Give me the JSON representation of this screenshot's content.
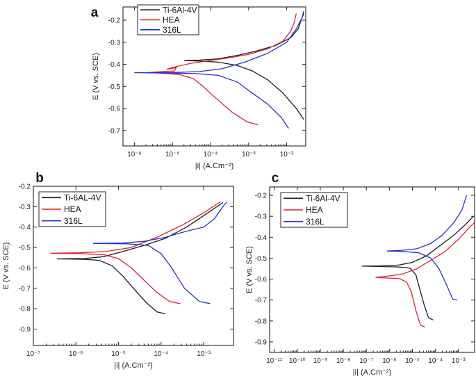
{
  "chart_data": [
    {
      "id": "a",
      "panel_label": "a",
      "type": "line",
      "xscale": "log",
      "xlabel": "|i| (A.Cm⁻²)",
      "ylabel": "E (V vs. SCE)",
      "xlim_exp": [
        -6.3,
        -1.5
      ],
      "ylim": [
        -0.77,
        -0.14
      ],
      "x_ticks": [
        {
          "exp": -6,
          "label": "10⁻⁶"
        },
        {
          "exp": -5,
          "label": "10⁻⁵"
        },
        {
          "exp": -4,
          "label": "10⁻⁴"
        },
        {
          "exp": -3,
          "label": "10⁻³"
        },
        {
          "exp": -2,
          "label": "10⁻²"
        }
      ],
      "y_ticks": [
        {
          "v": -0.2,
          "label": "-0.2"
        },
        {
          "v": -0.3,
          "label": "-0.3"
        },
        {
          "v": -0.4,
          "label": "-0.4"
        },
        {
          "v": -0.5,
          "label": "-0.5"
        },
        {
          "v": -0.6,
          "label": "-0.6"
        },
        {
          "v": -0.7,
          "label": "-0.7"
        }
      ],
      "legend": [
        "Ti-6Al-4V",
        "HEA",
        "316L"
      ],
      "series": [
        {
          "name": "Ti-6Al-4V",
          "color": "#1a1a1a",
          "points": [
            [
              -1.55,
              -0.65
            ],
            [
              -1.75,
              -0.6
            ],
            [
              -2.1,
              -0.53
            ],
            [
              -2.5,
              -0.47
            ],
            [
              -2.9,
              -0.43
            ],
            [
              -3.3,
              -0.405
            ],
            [
              -3.8,
              -0.39
            ],
            [
              -4.3,
              -0.385
            ],
            [
              -4.7,
              -0.383
            ],
            [
              -4.3,
              -0.381
            ],
            [
              -3.8,
              -0.375
            ],
            [
              -3.3,
              -0.36
            ],
            [
              -2.8,
              -0.34
            ],
            [
              -2.3,
              -0.315
            ],
            [
              -1.9,
              -0.28
            ],
            [
              -1.7,
              -0.24
            ],
            [
              -1.6,
              -0.19
            ],
            [
              -1.55,
              -0.16
            ]
          ]
        },
        {
          "name": "HEA",
          "color": "#e0202a",
          "points": [
            [
              -2.75,
              -0.675
            ],
            [
              -3.05,
              -0.66
            ],
            [
              -3.45,
              -0.615
            ],
            [
              -3.85,
              -0.555
            ],
            [
              -4.2,
              -0.5
            ],
            [
              -4.45,
              -0.465
            ],
            [
              -4.8,
              -0.447
            ],
            [
              -5.3,
              -0.44
            ],
            [
              -5.6,
              -0.437
            ],
            [
              -5.3,
              -0.433
            ],
            [
              -4.95,
              -0.43
            ],
            [
              -4.9,
              -0.415
            ],
            [
              -5.15,
              -0.423
            ],
            [
              -4.9,
              -0.41
            ],
            [
              -4.5,
              -0.395
            ],
            [
              -4.0,
              -0.383
            ],
            [
              -3.5,
              -0.37
            ],
            [
              -3.0,
              -0.355
            ],
            [
              -2.5,
              -0.33
            ],
            [
              -2.1,
              -0.295
            ],
            [
              -1.9,
              -0.25
            ],
            [
              -1.8,
              -0.21
            ],
            [
              -1.75,
              -0.17
            ]
          ]
        },
        {
          "name": "316L",
          "color": "#2030d8",
          "points": [
            [
              -1.95,
              -0.69
            ],
            [
              -2.15,
              -0.64
            ],
            [
              -2.5,
              -0.58
            ],
            [
              -2.95,
              -0.525
            ],
            [
              -3.3,
              -0.48
            ],
            [
              -3.8,
              -0.45
            ],
            [
              -4.4,
              -0.442
            ],
            [
              -5.0,
              -0.44
            ],
            [
              -6.0,
              -0.438
            ],
            [
              -5.0,
              -0.437
            ],
            [
              -4.3,
              -0.433
            ],
            [
              -3.7,
              -0.42
            ],
            [
              -3.1,
              -0.39
            ],
            [
              -2.5,
              -0.35
            ],
            [
              -2.0,
              -0.3
            ],
            [
              -1.75,
              -0.24
            ],
            [
              -1.6,
              -0.19
            ],
            [
              -1.55,
              -0.17
            ]
          ]
        }
      ]
    },
    {
      "id": "b",
      "panel_label": "b",
      "type": "line",
      "xscale": "log",
      "xlabel": "|i| (A.Cm⁻²)",
      "ylabel": "E (V vs. SCE)",
      "xlim_exp": [
        -7,
        -2.3
      ],
      "ylim": [
        -0.98,
        -0.2
      ],
      "x_ticks": [
        {
          "exp": -7,
          "label": "10⁻⁷"
        },
        {
          "exp": -6,
          "label": "10⁻⁶"
        },
        {
          "exp": -5,
          "label": "10⁻⁵"
        },
        {
          "exp": -4,
          "label": "10⁻⁴"
        },
        {
          "exp": -3,
          "label": "10⁻³"
        }
      ],
      "y_ticks": [
        {
          "v": -0.2,
          "label": "-0.2"
        },
        {
          "v": -0.3,
          "label": "-0.3"
        },
        {
          "v": -0.4,
          "label": "-0.4"
        },
        {
          "v": -0.5,
          "label": "-0.5"
        },
        {
          "v": -0.6,
          "label": "-0.6"
        },
        {
          "v": -0.7,
          "label": "-0.7"
        },
        {
          "v": -0.8,
          "label": "-0.8"
        },
        {
          "v": -0.9,
          "label": "-0.9"
        }
      ],
      "legend": [
        "Ti-6AL-4V",
        "HEA",
        "316L"
      ],
      "series": [
        {
          "name": "Ti-6AL-4V",
          "color": "#1a1a1a",
          "points": [
            [
              -3.9,
              -0.825
            ],
            [
              -4.1,
              -0.815
            ],
            [
              -4.35,
              -0.77
            ],
            [
              -4.65,
              -0.7
            ],
            [
              -4.9,
              -0.64
            ],
            [
              -5.15,
              -0.59
            ],
            [
              -5.45,
              -0.563
            ],
            [
              -5.8,
              -0.558
            ],
            [
              -6.45,
              -0.556
            ],
            [
              -5.8,
              -0.554
            ],
            [
              -5.35,
              -0.545
            ],
            [
              -4.9,
              -0.52
            ],
            [
              -4.4,
              -0.49
            ],
            [
              -3.9,
              -0.455
            ],
            [
              -3.4,
              -0.4
            ],
            [
              -2.9,
              -0.33
            ],
            [
              -2.55,
              -0.28
            ]
          ]
        },
        {
          "name": "HEA",
          "color": "#e0202a",
          "points": [
            [
              -3.55,
              -0.775
            ],
            [
              -3.8,
              -0.765
            ],
            [
              -4.1,
              -0.72
            ],
            [
              -4.4,
              -0.66
            ],
            [
              -4.7,
              -0.6
            ],
            [
              -5.0,
              -0.555
            ],
            [
              -5.35,
              -0.535
            ],
            [
              -5.9,
              -0.53
            ],
            [
              -6.6,
              -0.528
            ],
            [
              -5.9,
              -0.526
            ],
            [
              -5.3,
              -0.52
            ],
            [
              -4.7,
              -0.5
            ],
            [
              -4.1,
              -0.45
            ],
            [
              -3.5,
              -0.39
            ],
            [
              -3.0,
              -0.33
            ],
            [
              -2.6,
              -0.275
            ]
          ]
        },
        {
          "name": "316L",
          "color": "#2030d8",
          "points": [
            [
              -2.85,
              -0.775
            ],
            [
              -3.1,
              -0.765
            ],
            [
              -3.45,
              -0.7
            ],
            [
              -3.75,
              -0.6
            ],
            [
              -4.0,
              -0.53
            ],
            [
              -4.3,
              -0.49
            ],
            [
              -4.8,
              -0.482
            ],
            [
              -5.6,
              -0.48
            ],
            [
              -4.9,
              -0.478
            ],
            [
              -4.4,
              -0.47
            ],
            [
              -3.9,
              -0.45
            ],
            [
              -3.4,
              -0.42
            ],
            [
              -3.0,
              -0.4
            ],
            [
              -2.75,
              -0.36
            ],
            [
              -2.55,
              -0.3
            ],
            [
              -2.45,
              -0.275
            ]
          ]
        }
      ]
    },
    {
      "id": "c",
      "panel_label": "c",
      "type": "line",
      "xscale": "log",
      "xlabel": "|i| (A.Cm⁻²)",
      "ylabel": "E (V vs. SCE)",
      "xlim_exp": [
        -11.2,
        -2.3
      ],
      "ylim": [
        -0.95,
        -0.16
      ],
      "x_ticks": [
        {
          "exp": -11,
          "label": "10⁻¹¹"
        },
        {
          "exp": -10,
          "label": "10⁻¹⁰"
        },
        {
          "exp": -9,
          "label": "10⁻⁹"
        },
        {
          "exp": -8,
          "label": "10⁻⁸"
        },
        {
          "exp": -7,
          "label": "10⁻⁷"
        },
        {
          "exp": -6,
          "label": "10⁻⁶"
        },
        {
          "exp": -5,
          "label": "10⁻⁵"
        },
        {
          "exp": -4,
          "label": "10⁻⁴"
        },
        {
          "exp": -3,
          "label": "10⁻³"
        }
      ],
      "y_ticks": [
        {
          "v": -0.2,
          "label": "-0.2"
        },
        {
          "v": -0.3,
          "label": "-0.3"
        },
        {
          "v": -0.4,
          "label": "-0.4"
        },
        {
          "v": -0.5,
          "label": "-0.5"
        },
        {
          "v": -0.6,
          "label": "-0.6"
        },
        {
          "v": -0.7,
          "label": "-0.7"
        },
        {
          "v": -0.8,
          "label": "-0.8"
        },
        {
          "v": -0.9,
          "label": "-0.9"
        }
      ],
      "legend": [
        "Ti-6Al-4V",
        "HEA",
        "316L"
      ],
      "series": [
        {
          "name": "Ti-6Al-4V",
          "color": "#1a1a1a",
          "points": [
            [
              -4.1,
              -0.795
            ],
            [
              -4.3,
              -0.785
            ],
            [
              -4.5,
              -0.72
            ],
            [
              -4.7,
              -0.64
            ],
            [
              -4.85,
              -0.58
            ],
            [
              -5.1,
              -0.548
            ],
            [
              -5.6,
              -0.542
            ],
            [
              -6.4,
              -0.54
            ],
            [
              -7.2,
              -0.538
            ],
            [
              -6.4,
              -0.537
            ],
            [
              -5.6,
              -0.533
            ],
            [
              -5.0,
              -0.52
            ],
            [
              -4.4,
              -0.49
            ],
            [
              -3.8,
              -0.44
            ],
            [
              -3.2,
              -0.39
            ],
            [
              -2.7,
              -0.34
            ],
            [
              -2.35,
              -0.3
            ]
          ]
        },
        {
          "name": "HEA",
          "color": "#e0202a",
          "points": [
            [
              -4.45,
              -0.83
            ],
            [
              -4.65,
              -0.82
            ],
            [
              -4.85,
              -0.75
            ],
            [
              -5.05,
              -0.66
            ],
            [
              -5.25,
              -0.615
            ],
            [
              -5.55,
              -0.598
            ],
            [
              -6.0,
              -0.595
            ],
            [
              -6.6,
              -0.592
            ],
            [
              -6.0,
              -0.585
            ],
            [
              -5.4,
              -0.575
            ],
            [
              -4.8,
              -0.55
            ],
            [
              -4.2,
              -0.51
            ],
            [
              -3.6,
              -0.47
            ],
            [
              -3.0,
              -0.41
            ],
            [
              -2.5,
              -0.35
            ],
            [
              -2.3,
              -0.33
            ]
          ]
        },
        {
          "name": "316L",
          "color": "#2030d8",
          "points": [
            [
              -3.05,
              -0.7
            ],
            [
              -3.25,
              -0.695
            ],
            [
              -3.55,
              -0.62
            ],
            [
              -3.85,
              -0.55
            ],
            [
              -4.2,
              -0.5
            ],
            [
              -4.7,
              -0.475
            ],
            [
              -5.4,
              -0.468
            ],
            [
              -6.1,
              -0.466
            ],
            [
              -5.4,
              -0.462
            ],
            [
              -4.8,
              -0.455
            ],
            [
              -4.2,
              -0.43
            ],
            [
              -3.7,
              -0.39
            ],
            [
              -3.2,
              -0.33
            ],
            [
              -2.85,
              -0.27
            ],
            [
              -2.65,
              -0.2
            ]
          ]
        }
      ]
    }
  ]
}
